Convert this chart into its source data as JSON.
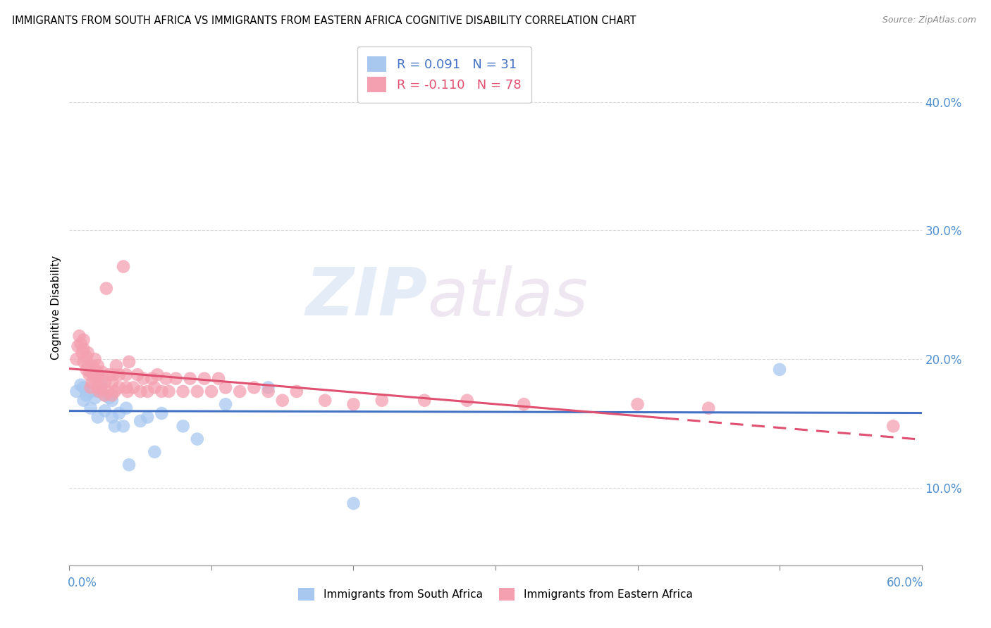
{
  "title": "IMMIGRANTS FROM SOUTH AFRICA VS IMMIGRANTS FROM EASTERN AFRICA COGNITIVE DISABILITY CORRELATION CHART",
  "source": "Source: ZipAtlas.com",
  "ylabel": "Cognitive Disability",
  "xlim": [
    0.0,
    0.6
  ],
  "ylim": [
    0.04,
    0.44
  ],
  "legend_blue_r": "R = 0.091",
  "legend_blue_n": "N = 31",
  "legend_pink_r": "R = -0.110",
  "legend_pink_n": "N = 78",
  "blue_color": "#a8c8f0",
  "pink_color": "#f4a0b0",
  "blue_line_color": "#4472c4",
  "pink_line_color": "#e05070",
  "watermark_zip": "ZIP",
  "watermark_atlas": "atlas",
  "blue_scatter_x": [
    0.005,
    0.008,
    0.01,
    0.01,
    0.012,
    0.015,
    0.015,
    0.018,
    0.02,
    0.02,
    0.022,
    0.025,
    0.025,
    0.028,
    0.03,
    0.03,
    0.032,
    0.035,
    0.038,
    0.04,
    0.042,
    0.05,
    0.055,
    0.06,
    0.065,
    0.08,
    0.09,
    0.11,
    0.14,
    0.2,
    0.5
  ],
  "blue_scatter_y": [
    0.175,
    0.18,
    0.168,
    0.178,
    0.172,
    0.162,
    0.175,
    0.17,
    0.155,
    0.175,
    0.18,
    0.16,
    0.172,
    0.17,
    0.155,
    0.168,
    0.148,
    0.158,
    0.148,
    0.162,
    0.118,
    0.152,
    0.155,
    0.128,
    0.158,
    0.148,
    0.138,
    0.165,
    0.178,
    0.088,
    0.192
  ],
  "pink_scatter_x": [
    0.005,
    0.006,
    0.007,
    0.008,
    0.009,
    0.01,
    0.01,
    0.01,
    0.012,
    0.012,
    0.013,
    0.013,
    0.014,
    0.015,
    0.015,
    0.016,
    0.016,
    0.017,
    0.018,
    0.018,
    0.019,
    0.02,
    0.02,
    0.02,
    0.021,
    0.021,
    0.022,
    0.023,
    0.025,
    0.025,
    0.026,
    0.027,
    0.028,
    0.03,
    0.03,
    0.031,
    0.032,
    0.033,
    0.035,
    0.035,
    0.038,
    0.04,
    0.04,
    0.041,
    0.042,
    0.045,
    0.048,
    0.05,
    0.052,
    0.055,
    0.058,
    0.06,
    0.062,
    0.065,
    0.068,
    0.07,
    0.075,
    0.08,
    0.085,
    0.09,
    0.095,
    0.1,
    0.105,
    0.11,
    0.12,
    0.13,
    0.14,
    0.15,
    0.16,
    0.18,
    0.2,
    0.22,
    0.25,
    0.28,
    0.32,
    0.4,
    0.45,
    0.58
  ],
  "pink_scatter_y": [
    0.2,
    0.21,
    0.218,
    0.212,
    0.205,
    0.198,
    0.208,
    0.215,
    0.192,
    0.202,
    0.195,
    0.205,
    0.188,
    0.178,
    0.19,
    0.182,
    0.195,
    0.188,
    0.192,
    0.2,
    0.185,
    0.178,
    0.188,
    0.195,
    0.175,
    0.185,
    0.178,
    0.19,
    0.172,
    0.182,
    0.255,
    0.175,
    0.188,
    0.172,
    0.182,
    0.188,
    0.175,
    0.195,
    0.178,
    0.188,
    0.272,
    0.178,
    0.188,
    0.175,
    0.198,
    0.178,
    0.188,
    0.175,
    0.185,
    0.175,
    0.185,
    0.178,
    0.188,
    0.175,
    0.185,
    0.175,
    0.185,
    0.175,
    0.185,
    0.175,
    0.185,
    0.175,
    0.185,
    0.178,
    0.175,
    0.178,
    0.175,
    0.168,
    0.175,
    0.168,
    0.165,
    0.168,
    0.168,
    0.168,
    0.165,
    0.165,
    0.162,
    0.148
  ]
}
